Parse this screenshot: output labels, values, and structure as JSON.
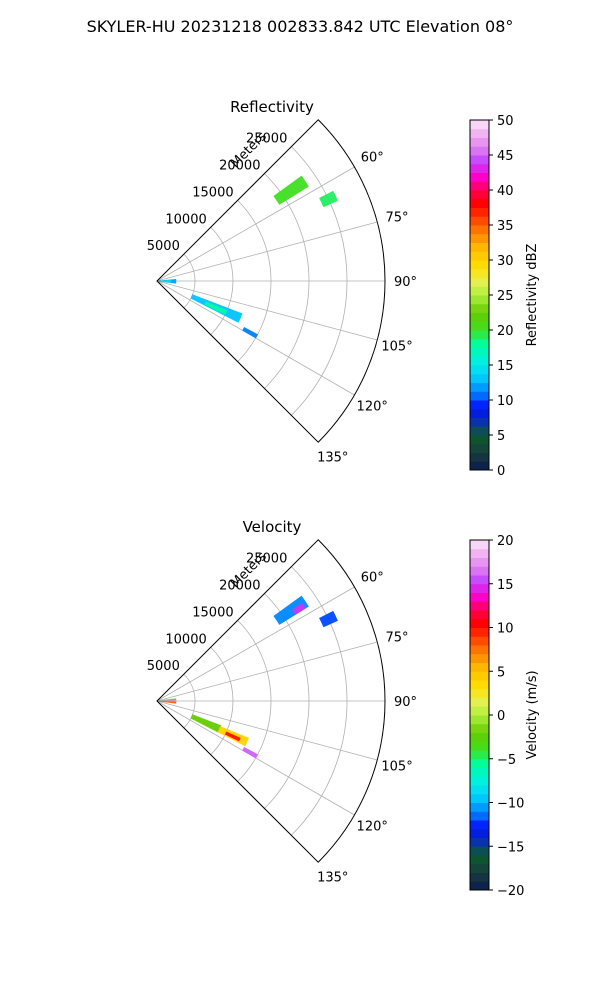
{
  "suptitle": "SKYLER-HU  20231218  002833.842 UTC Elevation 08°",
  "colors": {
    "grid": "#b0b0b0",
    "frame": "#000000"
  },
  "chart_data": [
    {
      "type": "polar",
      "title": "Reflectivity",
      "range_label": "Meters",
      "r_ticks": [
        5000,
        10000,
        15000,
        20000,
        25000
      ],
      "r_tick_labels": [
        "5000",
        "10000",
        "15000",
        "20000",
        "25000"
      ],
      "r_max": 30000,
      "theta_ticks_deg": [
        60,
        75,
        90,
        105,
        120,
        135
      ],
      "theta_tick_labels": [
        "60°",
        "75°",
        "90°",
        "105°",
        "120°",
        "135°"
      ],
      "theta_range_deg": [
        45,
        135
      ],
      "colorbar": {
        "label": "Reflectivity dBZ",
        "min": 0,
        "max": 50,
        "ticks": [
          0,
          5,
          10,
          15,
          20,
          25,
          30,
          35,
          40,
          45,
          50
        ],
        "tick_labels": [
          "0",
          "5",
          "10",
          "15",
          "20",
          "25",
          "30",
          "35",
          "40",
          "45",
          "50"
        ]
      },
      "echoes": [
        {
          "az": [
            85,
            97
          ],
          "r": [
            300,
            2500
          ],
          "value": 12
        },
        {
          "az": [
            88,
            94
          ],
          "r": [
            500,
            1800
          ],
          "value": 15
        },
        {
          "az": [
            111,
            117
          ],
          "r": [
            5000,
            12000
          ],
          "value": 13
        },
        {
          "az": [
            113,
            116
          ],
          "r": [
            7000,
            10000
          ],
          "value": 18
        },
        {
          "az": [
            118,
            120
          ],
          "r": [
            13000,
            15000
          ],
          "value": 11
        },
        {
          "az": [
            54,
            58
          ],
          "r": [
            19000,
            23500
          ],
          "value": 20
        },
        {
          "az": [
            63,
            66
          ],
          "r": [
            24000,
            26000
          ],
          "value": 19
        }
      ]
    },
    {
      "type": "polar",
      "title": "Velocity",
      "range_label": "Meters",
      "r_ticks": [
        5000,
        10000,
        15000,
        20000,
        25000
      ],
      "r_tick_labels": [
        "5000",
        "10000",
        "15000",
        "20000",
        "25000"
      ],
      "r_max": 30000,
      "theta_ticks_deg": [
        60,
        75,
        90,
        105,
        120,
        135
      ],
      "theta_tick_labels": [
        "60°",
        "75°",
        "90°",
        "105°",
        "120°",
        "135°"
      ],
      "theta_range_deg": [
        45,
        135
      ],
      "colorbar": {
        "label": "Velocity (m/s)",
        "min": -20,
        "max": 20,
        "ticks": [
          -20,
          -15,
          -10,
          -5,
          0,
          5,
          10,
          15,
          20
        ],
        "tick_labels": [
          "−20",
          "−15",
          "−10",
          "−5",
          "0",
          "5",
          "10",
          "15",
          "20"
        ]
      },
      "echoes": [
        {
          "az": [
            83,
            88
          ],
          "r": [
            300,
            2500
          ],
          "value": -3
        },
        {
          "az": [
            88,
            93
          ],
          "r": [
            300,
            2500
          ],
          "value": 17
        },
        {
          "az": [
            93,
            97
          ],
          "r": [
            300,
            2500
          ],
          "value": 8
        },
        {
          "az": [
            111,
            117
          ],
          "r": [
            5000,
            9000
          ],
          "value": -2
        },
        {
          "az": [
            112,
            117
          ],
          "r": [
            9000,
            13000
          ],
          "value": 4
        },
        {
          "az": [
            114,
            116
          ],
          "r": [
            10000,
            12000
          ],
          "value": 10
        },
        {
          "az": [
            118,
            120
          ],
          "r": [
            13000,
            15000
          ],
          "value": 16
        },
        {
          "az": [
            54,
            58
          ],
          "r": [
            19000,
            23500
          ],
          "value": -11
        },
        {
          "az": [
            56,
            58
          ],
          "r": [
            21500,
            23000
          ],
          "value": 15
        },
        {
          "az": [
            63,
            66
          ],
          "r": [
            24000,
            26000
          ],
          "value": -12
        }
      ]
    }
  ]
}
